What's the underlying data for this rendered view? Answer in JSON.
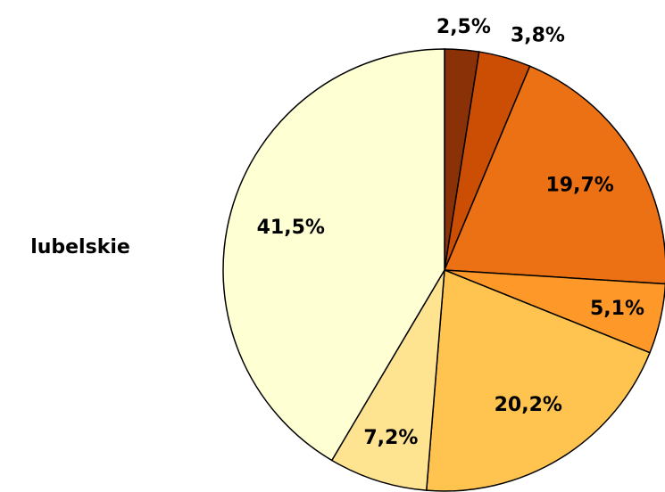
{
  "chart_data": {
    "type": "pie",
    "title": "lubelskie",
    "categories": [
      null,
      null,
      null,
      null,
      null,
      null,
      null
    ],
    "values": [
      2.5,
      3.8,
      19.7,
      5.1,
      20.2,
      7.2,
      41.5
    ],
    "value_labels": [
      "2,5%",
      "3,8%",
      "19,7%",
      "5,1%",
      "20,2%",
      "7,2%",
      "41,5%"
    ],
    "colors": [
      "#8b3108",
      "#cc4e04",
      "#ec7014",
      "#fe9929",
      "#fec44f",
      "#fee391",
      "#ffffd4"
    ]
  }
}
